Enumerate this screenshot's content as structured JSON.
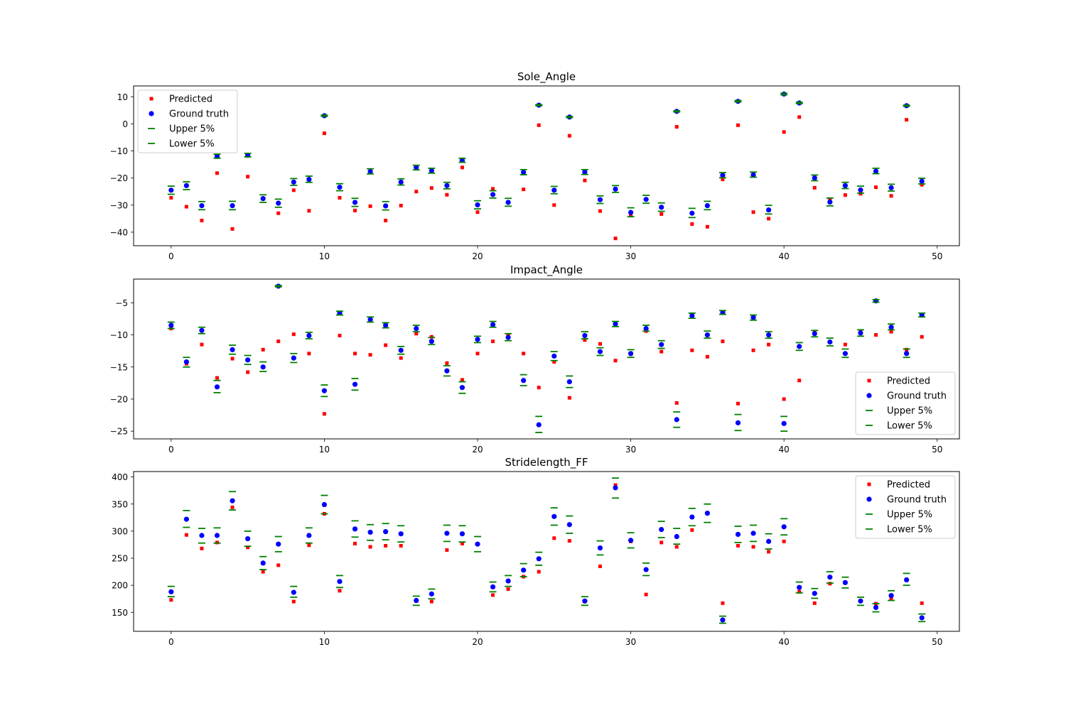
{
  "chart_data": [
    {
      "type": "scatter",
      "title": "Sole_Angle",
      "xlabel": "",
      "ylabel": "",
      "xlim": [
        -2.45,
        51.45
      ],
      "ylim": [
        -45.0,
        14.0
      ],
      "xticks": [
        0,
        10,
        20,
        30,
        40,
        50
      ],
      "yticks": [
        -40,
        -30,
        -20,
        -10,
        0,
        10
      ],
      "legend_position": "upper-left",
      "grid": false,
      "x": [
        0,
        1,
        2,
        3,
        4,
        5,
        6,
        7,
        8,
        9,
        10,
        11,
        12,
        13,
        14,
        15,
        16,
        17,
        18,
        19,
        20,
        21,
        22,
        23,
        24,
        25,
        26,
        27,
        28,
        29,
        30,
        31,
        32,
        33,
        34,
        35,
        36,
        37,
        38,
        39,
        40,
        41,
        42,
        43,
        44,
        45,
        46,
        47,
        48,
        49
      ],
      "series": [
        {
          "name": "Predicted",
          "marker": "square",
          "color": "#ff0000",
          "values": [
            -27.3,
            -30.6,
            -35.7,
            -18.2,
            -38.8,
            -19.5,
            -27.5,
            -33,
            -24.5,
            -32.1,
            -3.5,
            -27.3,
            -32,
            -30.4,
            -35.7,
            -30.2,
            -25,
            -23.7,
            -26.2,
            -16.1,
            -32.6,
            -24,
            -29,
            -24.2,
            -0.5,
            -30,
            -4.4,
            -20.9,
            -32.2,
            -42.3,
            -33.7,
            -27.8,
            -33.3,
            -1.1,
            -37,
            -38,
            -20.5,
            -0.5,
            -32.6,
            -35,
            -3,
            2.5,
            -23.6,
            -27.8,
            -26.3,
            -25.8,
            -23.4,
            -26.6,
            1.5,
            -22.5
          ]
        },
        {
          "name": "Ground truth",
          "marker": "circle",
          "color": "#0000ff",
          "values": [
            -24.5,
            -22.8,
            -30.2,
            -12,
            -30.2,
            -11.6,
            -27.6,
            -29.3,
            -21.5,
            -20.5,
            3,
            -23.4,
            -29,
            -17.6,
            -30.3,
            -21.5,
            -16.1,
            -17.3,
            -22.8,
            -13.5,
            -29.9,
            -26.1,
            -29,
            -17.9,
            6.9,
            -24.5,
            2.5,
            -17.8,
            -28,
            -24.1,
            -32.7,
            -27.9,
            -30.8,
            4.6,
            -33,
            -30.2,
            -19,
            8.3,
            -18.8,
            -31.8,
            11,
            7.7,
            -20,
            -28.9,
            -22.8,
            -24.4,
            -17.5,
            -23.6,
            6.7,
            -21.2
          ]
        },
        {
          "name": "Upper 5%",
          "marker": "hline",
          "color": "#008000",
          "values": [
            -23.0,
            -21.4,
            -28.7,
            -11.2,
            -28.6,
            -10.9,
            -26.2,
            -27.8,
            -20.2,
            -19.3,
            3.2,
            -22.1,
            -27.5,
            -16.6,
            -28.7,
            -20.3,
            -15.3,
            -16.4,
            -21.6,
            -12.7,
            -28.4,
            -24.7,
            -27.5,
            -16.9,
            7.1,
            -23.1,
            2.7,
            -16.9,
            -26.6,
            -22.8,
            -31.0,
            -26.4,
            -29.2,
            4.8,
            -31.2,
            -28.6,
            -18.0,
            8.6,
            -17.8,
            -30.1,
            11.3,
            8.0,
            -18.9,
            -27.4,
            -21.6,
            -23.0,
            -16.4,
            -22.3,
            6.9,
            -20.1
          ]
        },
        {
          "name": "Lower 5%",
          "marker": "hline",
          "color": "#008000",
          "values": [
            -26.0,
            -24.3,
            -31.7,
            -12.7,
            -31.7,
            -12.2,
            -29.0,
            -30.8,
            -22.7,
            -21.6,
            2.8,
            -24.7,
            -30.5,
            -18.5,
            -31.8,
            -22.6,
            -17.0,
            -18.2,
            -24.0,
            -14.2,
            -31.4,
            -27.4,
            -30.4,
            -18.8,
            6.7,
            -25.8,
            2.3,
            -18.7,
            -29.4,
            -25.3,
            -34.3,
            -29.3,
            -32.3,
            4.4,
            -34.6,
            -31.7,
            -19.9,
            8.1,
            -19.7,
            -33.3,
            10.7,
            7.5,
            -21.0,
            -30.3,
            -23.9,
            -25.6,
            -18.4,
            -24.8,
            6.5,
            -22.2
          ]
        }
      ]
    },
    {
      "type": "scatter",
      "title": "Impact_Angle",
      "xlabel": "",
      "ylabel": "",
      "xlim": [
        -2.45,
        51.45
      ],
      "ylim": [
        -26.2,
        -1.3
      ],
      "xticks": [
        0,
        10,
        20,
        30,
        40,
        50
      ],
      "yticks": [
        -25,
        -20,
        -15,
        -10,
        -5
      ],
      "legend_position": "lower-right",
      "grid": false,
      "x": [
        0,
        1,
        2,
        3,
        4,
        5,
        6,
        7,
        8,
        9,
        10,
        11,
        12,
        13,
        14,
        15,
        16,
        17,
        18,
        19,
        20,
        21,
        22,
        23,
        24,
        25,
        26,
        27,
        28,
        29,
        30,
        31,
        32,
        33,
        34,
        35,
        36,
        37,
        38,
        39,
        40,
        41,
        42,
        43,
        44,
        45,
        46,
        47,
        48,
        49
      ],
      "series": [
        {
          "name": "Predicted",
          "marker": "square",
          "color": "#ff0000",
          "values": [
            -9.0,
            -14.5,
            -11.5,
            -16.7,
            -13.7,
            -15.8,
            -12.3,
            -11.0,
            -9.9,
            -12.9,
            -22.3,
            -10.1,
            -12.9,
            -13.1,
            -11.6,
            -13.6,
            -9.8,
            -10.3,
            -14.4,
            -17.0,
            -12.9,
            -11.0,
            -10.1,
            -12.9,
            -18.2,
            -14.2,
            -19.8,
            -10.8,
            -11.4,
            -14.0,
            -13.0,
            -9.4,
            -12.6,
            -20.6,
            -12.4,
            -13.4,
            -11.0,
            -20.7,
            -12.4,
            -11.5,
            -20.0,
            -17.1,
            -9.6,
            -11.1,
            -11.5,
            -9.4,
            -10.0,
            -9.5,
            -12.3,
            -10.3
          ]
        },
        {
          "name": "Ground truth",
          "marker": "circle",
          "color": "#0000ff",
          "values": [
            -8.5,
            -14.2,
            -9.3,
            -18.1,
            -12.3,
            -13.9,
            -15.0,
            -2.4,
            -13.6,
            -10.1,
            -18.7,
            -6.6,
            -17.7,
            -7.6,
            -8.5,
            -12.4,
            -9.0,
            -11.0,
            -15.6,
            -18.2,
            -10.7,
            -8.4,
            -10.4,
            -17.1,
            -24.0,
            -13.3,
            -17.3,
            -10.1,
            -12.6,
            -8.3,
            -12.9,
            -9.0,
            -11.5,
            -23.2,
            -7.0,
            -10.0,
            -6.5,
            -23.7,
            -7.3,
            -10.0,
            -23.8,
            -11.8,
            -9.8,
            -11.1,
            -12.9,
            -9.7,
            -4.7,
            -8.8,
            -12.9,
            -6.9
          ]
        },
        {
          "name": "Upper 5%",
          "marker": "hline",
          "color": "#008000",
          "values": [
            -8.0,
            -13.5,
            -8.8,
            -17.1,
            -11.6,
            -13.2,
            -14.2,
            -2.3,
            -12.9,
            -9.6,
            -17.8,
            -6.3,
            -16.8,
            -7.2,
            -8.1,
            -11.8,
            -8.5,
            -10.4,
            -14.8,
            -17.3,
            -10.2,
            -7.9,
            -9.8,
            -16.2,
            -22.7,
            -12.6,
            -16.4,
            -9.5,
            -12.0,
            -7.9,
            -12.3,
            -8.5,
            -10.9,
            -22.0,
            -6.6,
            -9.4,
            -6.2,
            -22.4,
            -6.9,
            -9.5,
            -22.7,
            -11.2,
            -9.3,
            -10.5,
            -12.2,
            -9.2,
            -4.5,
            -8.3,
            -12.2,
            -6.6
          ]
        },
        {
          "name": "Lower 5%",
          "marker": "hline",
          "color": "#008000",
          "values": [
            -9.0,
            -15.0,
            -9.8,
            -19.0,
            -13.0,
            -14.6,
            -15.7,
            -2.5,
            -14.3,
            -10.6,
            -19.6,
            -6.9,
            -18.6,
            -8.0,
            -8.9,
            -13.0,
            -9.5,
            -11.5,
            -16.4,
            -19.1,
            -11.2,
            -8.8,
            -10.9,
            -17.9,
            -25.2,
            -14.0,
            -18.2,
            -10.6,
            -13.2,
            -8.7,
            -13.5,
            -9.4,
            -12.1,
            -24.4,
            -7.4,
            -10.5,
            -6.8,
            -24.9,
            -7.7,
            -10.5,
            -25.0,
            -12.4,
            -10.3,
            -11.7,
            -13.5,
            -10.2,
            -4.9,
            -9.2,
            -13.5,
            -7.2
          ]
        }
      ]
    },
    {
      "type": "scatter",
      "title": "Stridelength_FF",
      "xlabel": "",
      "ylabel": "",
      "xlim": [
        -2.45,
        51.45
      ],
      "ylim": [
        115.0,
        410.0
      ],
      "xticks": [
        0,
        10,
        20,
        30,
        40,
        50
      ],
      "yticks": [
        150,
        200,
        250,
        300,
        350,
        400
      ],
      "legend_position": "upper-right",
      "grid": false,
      "x": [
        0,
        1,
        2,
        3,
        4,
        5,
        6,
        7,
        8,
        9,
        10,
        11,
        12,
        13,
        14,
        15,
        16,
        17,
        18,
        19,
        20,
        21,
        22,
        23,
        24,
        25,
        26,
        27,
        28,
        29,
        30,
        31,
        32,
        33,
        34,
        35,
        36,
        37,
        38,
        39,
        40,
        41,
        42,
        43,
        44,
        45,
        46,
        47,
        48,
        49
      ],
      "series": [
        {
          "name": "Predicted",
          "marker": "square",
          "color": "#ff0000",
          "values": [
            173,
            293,
            268,
            279,
            344,
            270,
            225,
            237,
            170,
            274,
            332,
            190,
            277,
            271,
            273,
            273,
            171,
            170,
            265,
            277,
            276,
            182,
            193,
            216,
            225,
            287,
            282,
            170,
            235,
            385,
            281,
            183,
            279,
            271,
            302,
            334,
            167,
            273,
            271,
            262,
            281,
            188,
            167,
            203,
            205,
            171,
            166,
            175,
            211,
            167
          ]
        },
        {
          "name": "Ground truth",
          "marker": "circle",
          "color": "#0000ff",
          "values": [
            188,
            322,
            292,
            292,
            356,
            286,
            241,
            276,
            187,
            292,
            349,
            207,
            304,
            298,
            299,
            295,
            172,
            184,
            296,
            295,
            276,
            197,
            208,
            228,
            249,
            327,
            312,
            171,
            269,
            380,
            283,
            229,
            303,
            290,
            326,
            333,
            136,
            294,
            296,
            281,
            308,
            196,
            185,
            215,
            205,
            171,
            159,
            181,
            210,
            140
          ]
        },
        {
          "name": "Upper 5%",
          "marker": "hline",
          "color": "#008000",
          "values": [
            198,
            338,
            305,
            306,
            373,
            300,
            253,
            290,
            198,
            306,
            366,
            218,
            319,
            312,
            314,
            310,
            180,
            193,
            311,
            310,
            290,
            206,
            218,
            240,
            261,
            343,
            328,
            179,
            282,
            398,
            297,
            241,
            318,
            305,
            342,
            350,
            143,
            309,
            311,
            295,
            323,
            206,
            194,
            225,
            215,
            178,
            166,
            190,
            222,
            147
          ]
        },
        {
          "name": "Lower 5%",
          "marker": "hline",
          "color": "#008000",
          "values": [
            179,
            307,
            278,
            278,
            339,
            272,
            229,
            262,
            178,
            278,
            332,
            196,
            289,
            283,
            284,
            280,
            163,
            175,
            281,
            280,
            262,
            188,
            198,
            216,
            237,
            311,
            296,
            163,
            256,
            361,
            269,
            218,
            288,
            276,
            310,
            316,
            130,
            279,
            281,
            267,
            293,
            186,
            176,
            204,
            195,
            163,
            151,
            172,
            200,
            133
          ]
        }
      ]
    }
  ]
}
